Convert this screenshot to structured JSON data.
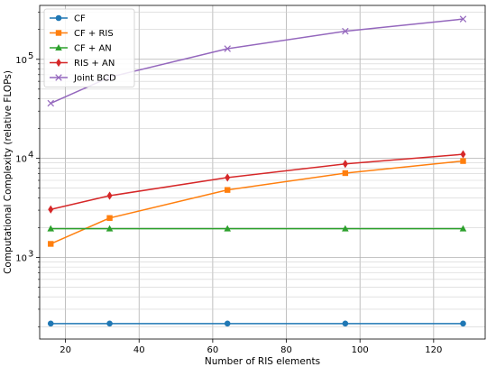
{
  "chart_data": {
    "type": "line",
    "xlabel": "Number of RIS elements",
    "ylabel": "Computational Complexity (relative FLOPs)",
    "xlim": [
      13,
      134
    ],
    "ylim": [
      150,
      350000
    ],
    "yscale": "log",
    "x_ticks": [
      20,
      40,
      60,
      80,
      100,
      120
    ],
    "y_major_ticks": [
      1000,
      10000,
      100000
    ],
    "y_tick_labels": [
      "10",
      "10",
      "10"
    ],
    "y_tick_exponents": [
      "3",
      "4",
      "5"
    ],
    "grid": true,
    "legend_position": "top-left",
    "x": [
      16,
      32,
      64,
      96,
      128
    ],
    "series": [
      {
        "name": "CF",
        "color": "#1f77b4",
        "marker": "circle",
        "values": [
          215,
          215,
          215,
          215,
          215
        ]
      },
      {
        "name": "CF + RIS",
        "color": "#ff7f0e",
        "marker": "square",
        "values": [
          1370,
          2500,
          4800,
          7100,
          9400
        ]
      },
      {
        "name": "CF + AN",
        "color": "#2ca02c",
        "marker": "triangle",
        "values": [
          1950,
          1950,
          1950,
          1950,
          1950
        ]
      },
      {
        "name": "RIS + AN",
        "color": "#d62728",
        "marker": "diamond",
        "values": [
          3050,
          4200,
          6400,
          8800,
          11000
        ]
      },
      {
        "name": "Joint BCD",
        "color": "#9467bd",
        "marker": "x",
        "values": [
          36000,
          66000,
          128000,
          192000,
          255000
        ]
      }
    ]
  }
}
